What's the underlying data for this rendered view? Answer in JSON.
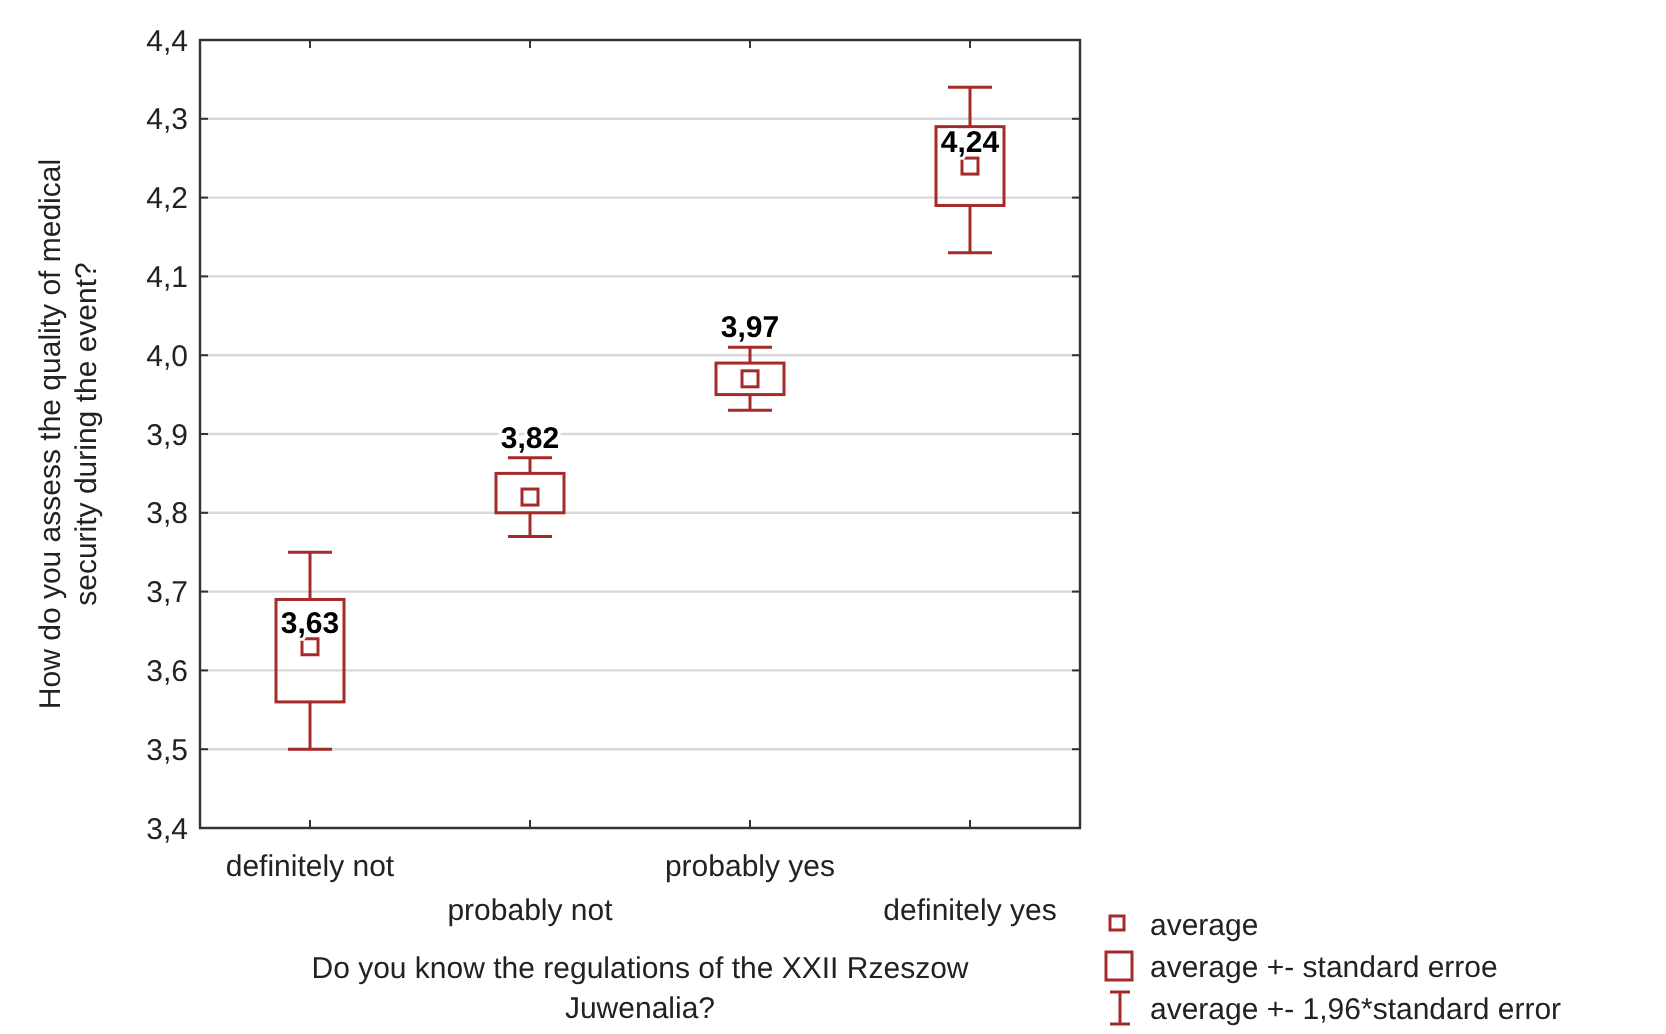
{
  "chart_data": {
    "type": "box",
    "xlabel": "Do you know the regulations of the XXII Rzeszow Juwenalia?",
    "ylabel": "How do you assess the quality of medical security during the event?",
    "categories": [
      "definitely not",
      "probably not",
      "probably yes",
      "definitely yes"
    ],
    "series": [
      {
        "type": "box",
        "color": "#a52a2a",
        "boxes": [
          {
            "low": 3.5,
            "q1": 3.56,
            "median": 3.63,
            "q3": 3.69,
            "high": 3.75
          },
          {
            "low": 3.77,
            "q1": 3.8,
            "median": 3.82,
            "q3": 3.85,
            "high": 3.87
          },
          {
            "low": 3.93,
            "q1": 3.95,
            "median": 3.97,
            "q3": 3.99,
            "high": 4.01
          },
          {
            "low": 4.13,
            "q1": 4.19,
            "median": 4.24,
            "q3": 4.29,
            "high": 4.34
          }
        ]
      }
    ],
    "value_labels": [
      "3,63",
      "3,82",
      "3,97",
      "4,24"
    ],
    "ylim": [
      3.4,
      4.4
    ],
    "yticks": [
      {
        "value": 3.4,
        "label": "3,4"
      },
      {
        "value": 3.5,
        "label": "3,5"
      },
      {
        "value": 3.6,
        "label": "3,6"
      },
      {
        "value": 3.7,
        "label": "3,7"
      },
      {
        "value": 3.8,
        "label": "3,8"
      },
      {
        "value": 3.9,
        "label": "3,9"
      },
      {
        "value": 4.0,
        "label": "4,0"
      },
      {
        "value": 4.1,
        "label": "4,1"
      },
      {
        "value": 4.2,
        "label": "4,2"
      },
      {
        "value": 4.3,
        "label": "4,3"
      },
      {
        "value": 4.4,
        "label": "4,4"
      }
    ],
    "grid": "y",
    "annotations": [
      "average",
      "average +- standard erroe",
      "average +- 1,96*standard error"
    ]
  }
}
